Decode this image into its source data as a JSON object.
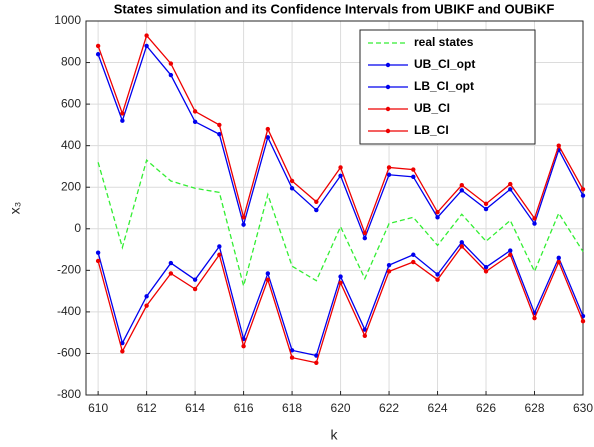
{
  "chart_data": {
    "type": "line",
    "title": "States simulation and its Confidence Intervals from UBIKF and OUBiKF",
    "x_label": "k",
    "y_label": "x₃",
    "x": [
      610,
      611,
      612,
      613,
      614,
      615,
      616,
      617,
      618,
      619,
      620,
      621,
      622,
      623,
      624,
      625,
      626,
      627,
      628,
      629,
      630
    ],
    "series": [
      {
        "name": "real states",
        "color": "#33ee33",
        "dashed": true,
        "marker": false,
        "values": [
          320,
          -90,
          330,
          230,
          195,
          175,
          -275,
          165,
          -180,
          -250,
          10,
          -240,
          25,
          55,
          -80,
          70,
          -60,
          40,
          -205,
          75,
          -110
        ]
      },
      {
        "name": "UB_CI_opt",
        "color": "#0000ee",
        "dashed": false,
        "marker": true,
        "values": [
          840,
          520,
          880,
          740,
          515,
          455,
          20,
          440,
          195,
          90,
          255,
          -45,
          260,
          250,
          55,
          185,
          95,
          190,
          25,
          380,
          160
        ]
      },
      {
        "name": "LB_CI_opt",
        "color": "#0000ee",
        "dashed": false,
        "marker": true,
        "values": [
          -115,
          -550,
          -325,
          -165,
          -245,
          -85,
          -530,
          -215,
          -585,
          -610,
          -230,
          -485,
          -175,
          -125,
          -220,
          -65,
          -185,
          -105,
          -405,
          -140,
          -420
        ]
      },
      {
        "name": "UB_CI",
        "color": "#ee0000",
        "dashed": false,
        "marker": true,
        "values": [
          880,
          555,
          930,
          795,
          565,
          500,
          55,
          480,
          230,
          130,
          295,
          -20,
          295,
          285,
          80,
          210,
          120,
          215,
          50,
          400,
          190
        ]
      },
      {
        "name": "LB_CI",
        "color": "#ee0000",
        "dashed": false,
        "marker": true,
        "values": [
          -155,
          -590,
          -370,
          -215,
          -290,
          -125,
          -565,
          -245,
          -620,
          -645,
          -260,
          -515,
          -205,
          -160,
          -245,
          -85,
          -205,
          -125,
          -430,
          -160,
          -445
        ]
      }
    ],
    "xlim": [
      609.5,
      630
    ],
    "xticks": [
      610,
      612,
      614,
      616,
      618,
      620,
      622,
      624,
      626,
      628,
      630
    ],
    "ylim": [
      -800,
      1000
    ],
    "yticks": [
      -800,
      -600,
      -400,
      -200,
      0,
      200,
      400,
      600,
      800,
      1000
    ],
    "grid": true,
    "legend": "upper right"
  }
}
